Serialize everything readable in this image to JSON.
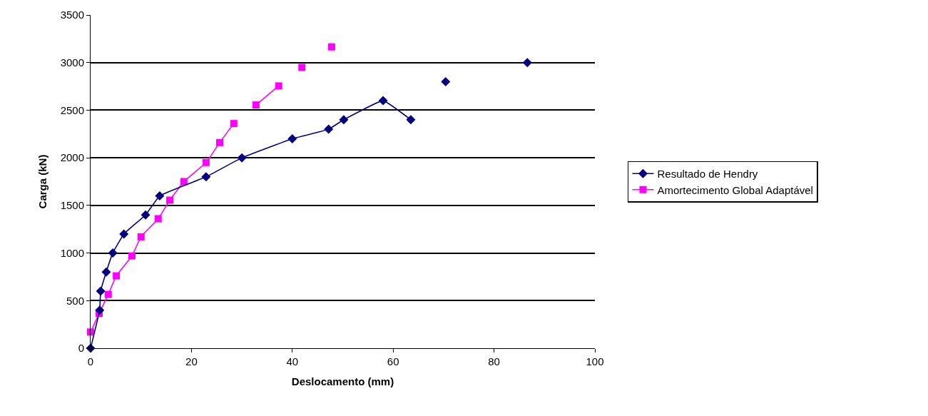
{
  "chart_data": {
    "type": "line",
    "xlabel": "Deslocamento (mm)",
    "ylabel": "Carga (kN)",
    "xlim": [
      0,
      100
    ],
    "xticks": [
      0,
      20,
      40,
      60,
      80,
      100
    ],
    "ylim": [
      0,
      3500
    ],
    "yticks": [
      0,
      500,
      1000,
      1500,
      2000,
      2500,
      3000,
      3500
    ],
    "grid": "y",
    "legend": "right",
    "series": [
      {
        "name": "Resultado de Hendry",
        "color": "#000080",
        "marker": "diamond",
        "x": [
          0,
          1.8,
          2,
          3.1,
          4.4,
          6.6,
          10.9,
          13.7,
          22.9,
          30,
          40,
          47.2,
          50.2,
          58,
          63.5,
          67,
          70.4,
          78,
          86.6
        ],
        "values": [
          0,
          400,
          600,
          800,
          1000,
          1200,
          1400,
          1600,
          1800,
          2000,
          2200,
          2300,
          2400,
          2600,
          2400,
          null,
          2800,
          null,
          3000
        ]
      },
      {
        "name": "Amortecimento Global Adaptável",
        "color": "#ff00ff",
        "marker": "square",
        "x": [
          0,
          1.7,
          3.5,
          5.1,
          8.2,
          10,
          13.4,
          15.7,
          18.5,
          22.9,
          25.6,
          28.4,
          30.6,
          32.8,
          37.3,
          39.6,
          41.9,
          44.8,
          47.8
        ],
        "values": [
          170,
          365,
          565,
          760,
          970,
          1170,
          1360,
          1555,
          1750,
          1950,
          2160,
          2360,
          null,
          2555,
          2755,
          null,
          2950,
          null,
          3165
        ]
      }
    ]
  }
}
